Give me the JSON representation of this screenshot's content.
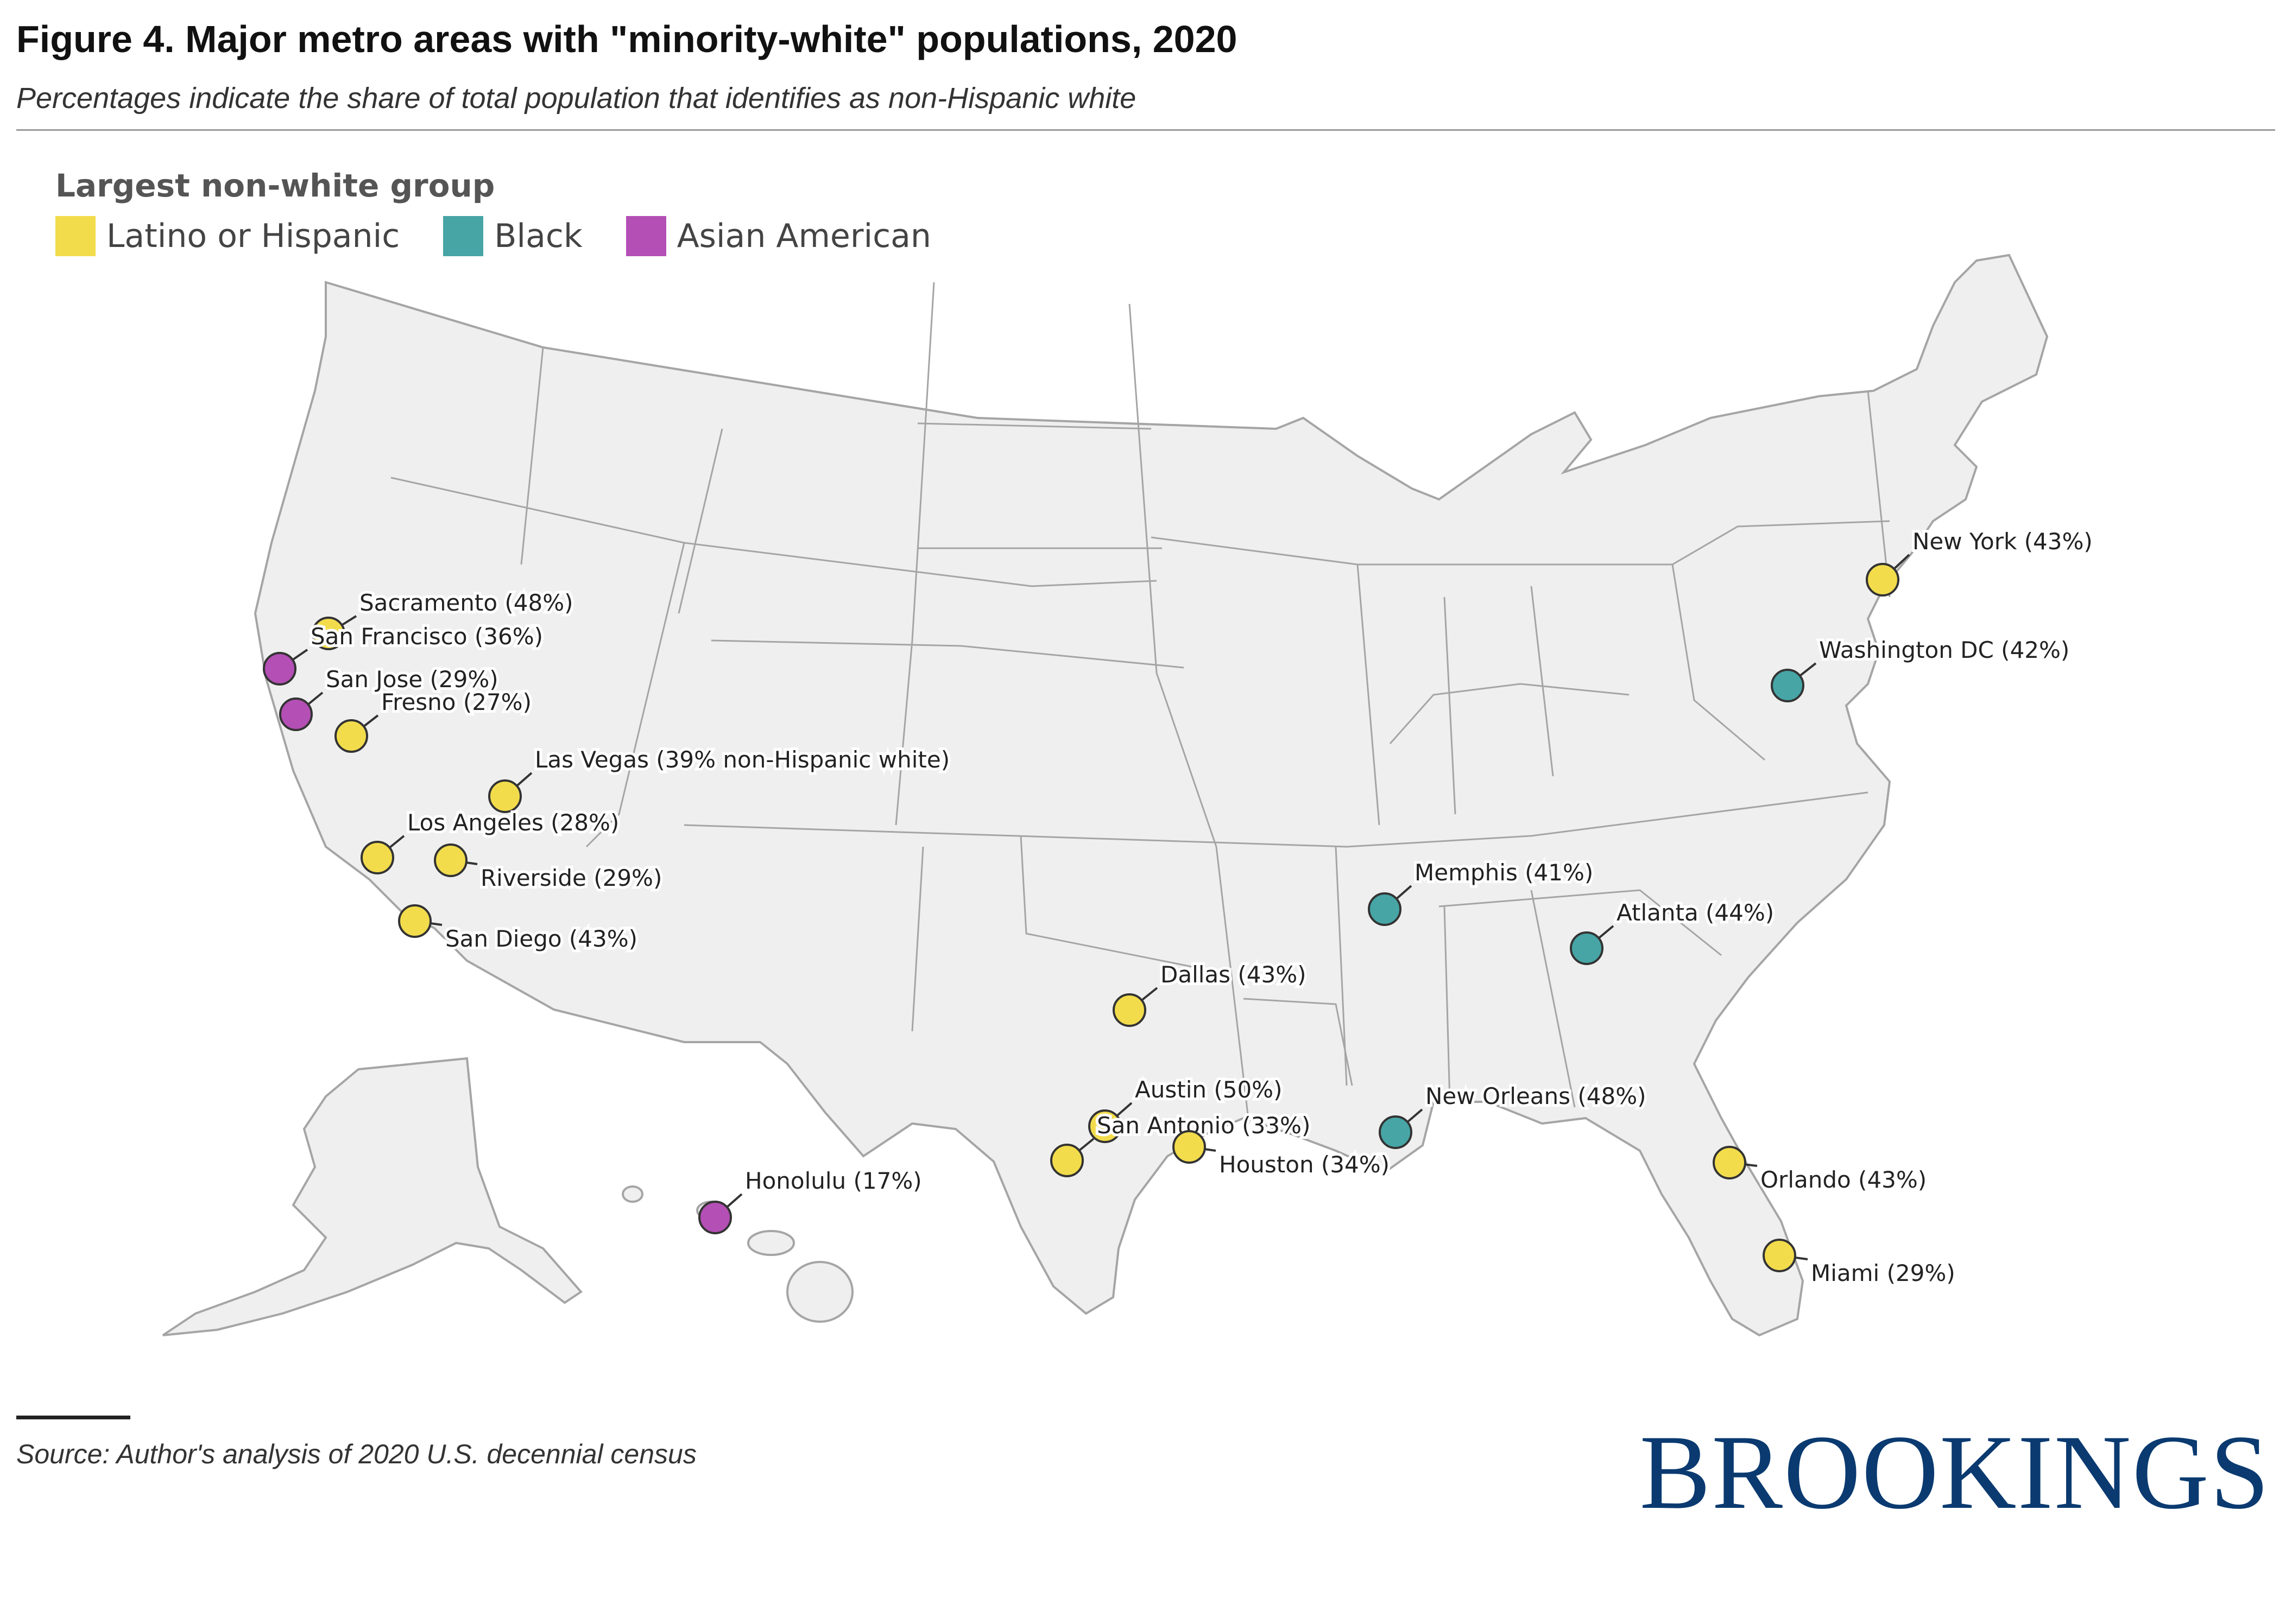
{
  "header": {
    "title": "Figure 4. Major metro areas with \"minority-white\" populations, 2020",
    "subtitle": "Percentages indicate the share of total population that identifies as non-Hispanic white"
  },
  "legend": {
    "title": "Largest non-white group",
    "items": [
      {
        "key": "latino",
        "label": "Latino or Hispanic",
        "color": "#f2dc4c"
      },
      {
        "key": "black",
        "label": "Black",
        "color": "#47a5a6"
      },
      {
        "key": "asian",
        "label": "Asian American",
        "color": "#b44fb5"
      }
    ]
  },
  "map_style": {
    "land_color": "#efefef",
    "border_color": "#a5a5a5",
    "marker_stroke": "#333333"
  },
  "metros": [
    {
      "name": "Sacramento",
      "label": "Sacramento (48%)",
      "pct_white": 48,
      "group": "latino"
    },
    {
      "name": "San Francisco",
      "label": "San Francisco (36%)",
      "pct_white": 36,
      "group": "asian"
    },
    {
      "name": "San Jose",
      "label": "San Jose (29%)",
      "pct_white": 29,
      "group": "asian"
    },
    {
      "name": "Fresno",
      "label": "Fresno (27%)",
      "pct_white": 27,
      "group": "latino"
    },
    {
      "name": "Las Vegas",
      "label": "Las Vegas (39% non-Hispanic white)",
      "pct_white": 39,
      "group": "latino"
    },
    {
      "name": "Los Angeles",
      "label": "Los Angeles (28%)",
      "pct_white": 28,
      "group": "latino"
    },
    {
      "name": "Riverside",
      "label": "Riverside (29%)",
      "pct_white": 29,
      "group": "latino"
    },
    {
      "name": "San Diego",
      "label": "San Diego (43%)",
      "pct_white": 43,
      "group": "latino"
    },
    {
      "name": "Honolulu",
      "label": "Honolulu (17%)",
      "pct_white": 17,
      "group": "asian"
    },
    {
      "name": "Dallas",
      "label": "Dallas (43%)",
      "pct_white": 43,
      "group": "latino"
    },
    {
      "name": "Austin",
      "label": "Austin (50%)",
      "pct_white": 50,
      "group": "latino"
    },
    {
      "name": "San Antonio",
      "label": "San Antonio (33%)",
      "pct_white": 33,
      "group": "latino"
    },
    {
      "name": "Houston",
      "label": "Houston (34%)",
      "pct_white": 34,
      "group": "latino"
    },
    {
      "name": "New Orleans",
      "label": "New Orleans (48%)",
      "pct_white": 48,
      "group": "black"
    },
    {
      "name": "Memphis",
      "label": "Memphis (41%)",
      "pct_white": 41,
      "group": "black"
    },
    {
      "name": "Atlanta",
      "label": "Atlanta (44%)",
      "pct_white": 44,
      "group": "black"
    },
    {
      "name": "Orlando",
      "label": "Orlando (43%)",
      "pct_white": 43,
      "group": "latino"
    },
    {
      "name": "Miami",
      "label": "Miami (29%)",
      "pct_white": 29,
      "group": "latino"
    },
    {
      "name": "Washington DC",
      "label": "Washington DC (42%)",
      "pct_white": 42,
      "group": "black"
    },
    {
      "name": "New York",
      "label": "New York (43%)",
      "pct_white": 43,
      "group": "latino"
    }
  ],
  "footer": {
    "source": "Source: Author's analysis of 2020 U.S. decennial census",
    "logo_text": "BROOKINGS"
  }
}
